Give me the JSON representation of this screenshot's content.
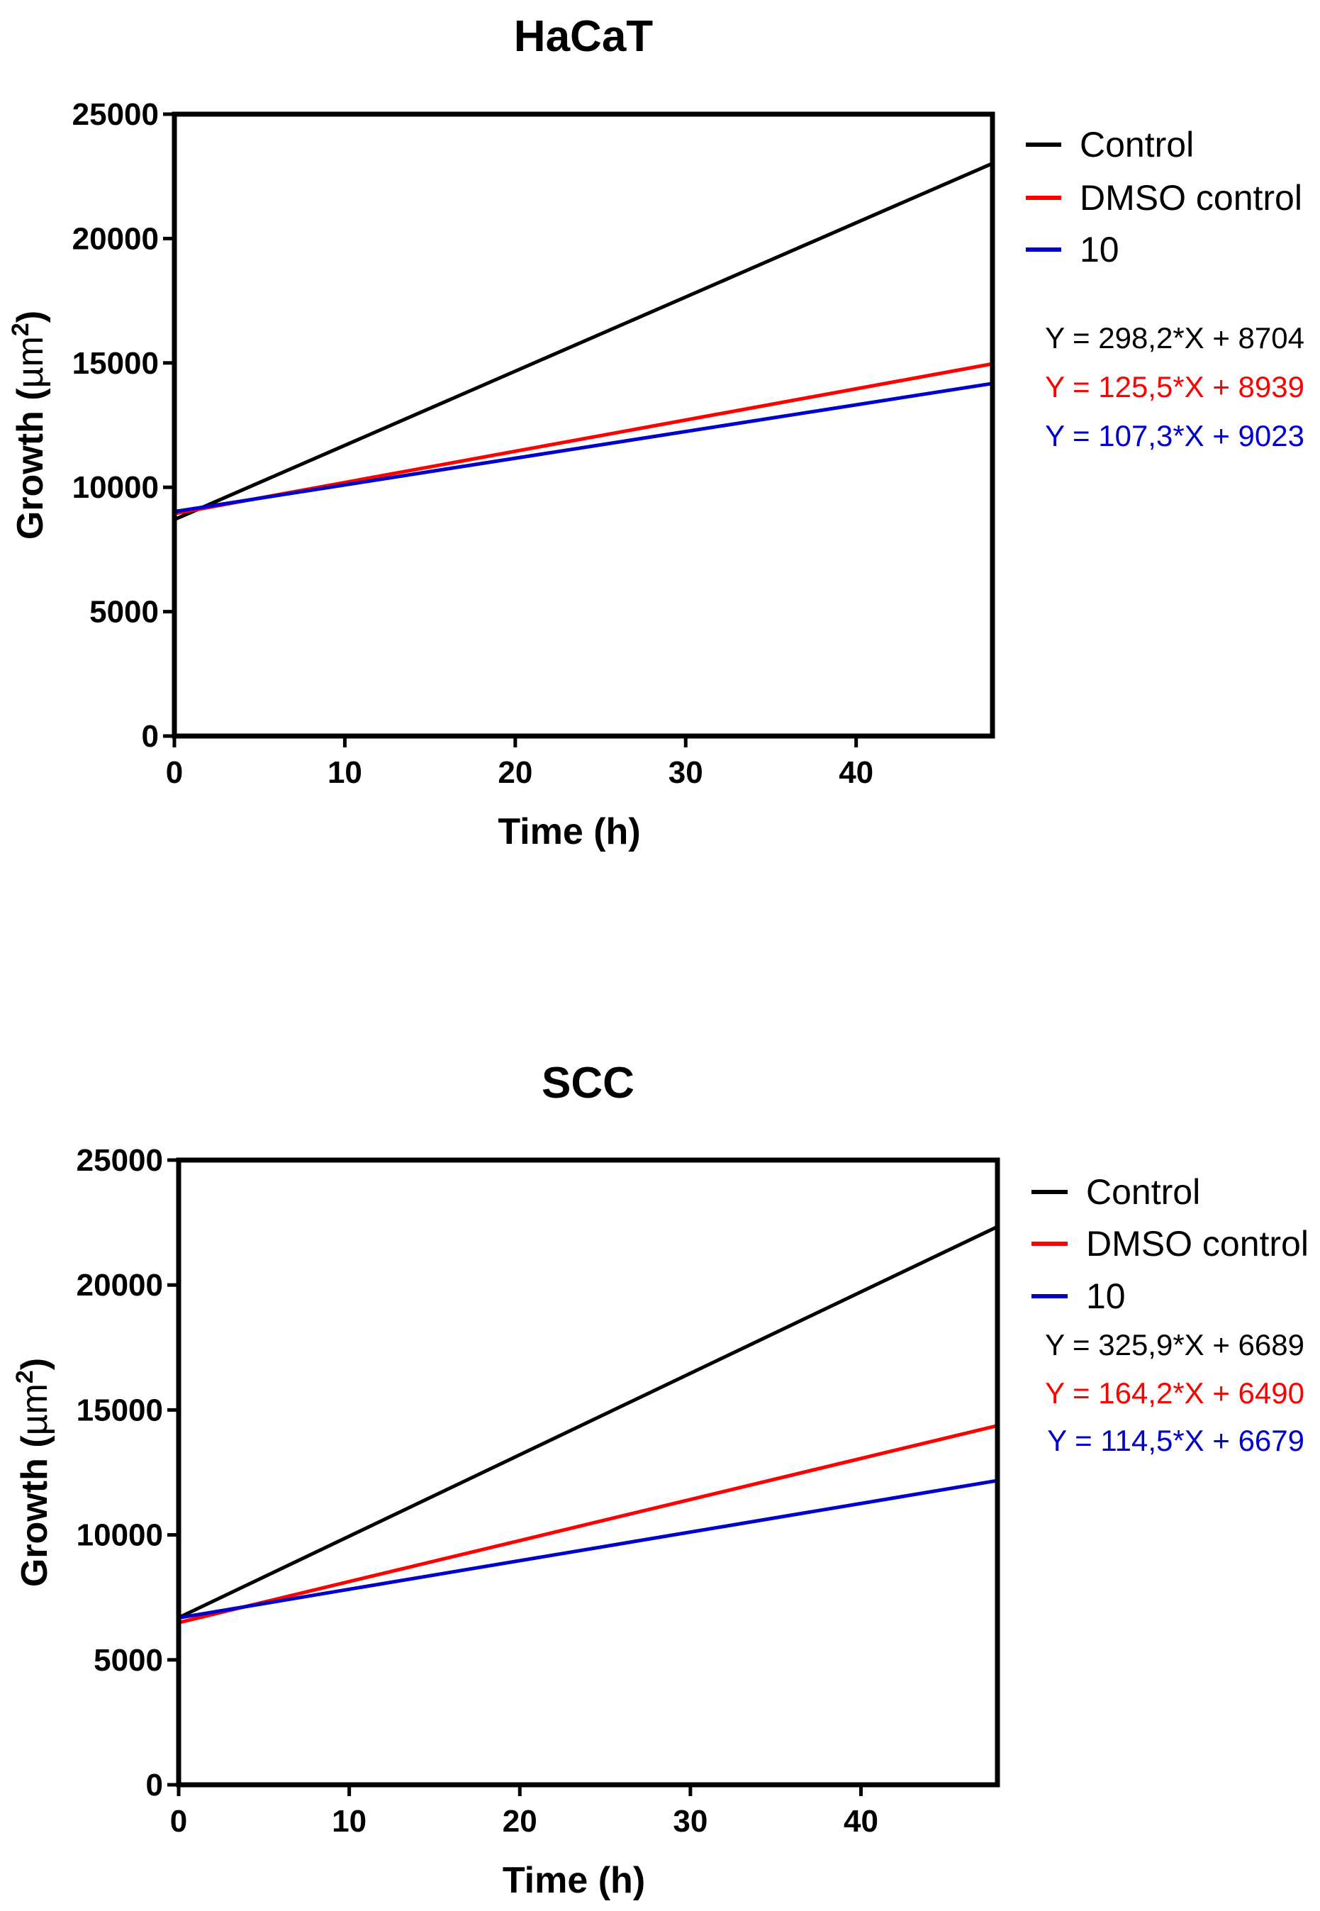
{
  "chart_data": [
    {
      "type": "line",
      "title": "HaCaT",
      "xlabel": "Time (h)",
      "ylabel_main": "Growth (",
      "ylabel_unit": "µm",
      "ylabel_exp": "2",
      "ylabel_close": ")",
      "xlim": [
        0,
        48
      ],
      "ylim": [
        0,
        25000
      ],
      "xticks": [
        0,
        10,
        20,
        30,
        40
      ],
      "yticks": [
        0,
        5000,
        10000,
        15000,
        20000,
        25000
      ],
      "grid": false,
      "legend_position": "right",
      "series": [
        {
          "name": "Control",
          "color": "#000000",
          "slope": 298.2,
          "intercept": 8704,
          "x": [
            0,
            48
          ],
          "y": [
            8704,
            23018
          ],
          "equation": "Y = 298,2*X + 8704"
        },
        {
          "name": "DMSO control",
          "color": "#ff0000",
          "slope": 125.5,
          "intercept": 8939,
          "x": [
            0,
            48
          ],
          "y": [
            8939,
            14963
          ],
          "equation": "Y = 125,5*X + 8939"
        },
        {
          "name": "10",
          "color": "#0000cc",
          "slope": 107.3,
          "intercept": 9023,
          "x": [
            0,
            48
          ],
          "y": [
            9023,
            14173
          ],
          "equation": "Y = 107,3*X + 9023"
        }
      ]
    },
    {
      "type": "line",
      "title": "SCC",
      "xlabel": "Time (h)",
      "ylabel_main": "Growth (",
      "ylabel_unit": "µm",
      "ylabel_exp": "2",
      "ylabel_close": ")",
      "xlim": [
        0,
        48
      ],
      "ylim": [
        0,
        25000
      ],
      "xticks": [
        0,
        10,
        20,
        30,
        40
      ],
      "yticks": [
        0,
        5000,
        10000,
        15000,
        20000,
        25000
      ],
      "grid": false,
      "legend_position": "right",
      "series": [
        {
          "name": "Control",
          "color": "#000000",
          "slope": 325.9,
          "intercept": 6689,
          "x": [
            0,
            48
          ],
          "y": [
            6689,
            22332
          ],
          "equation": "Y = 325,9*X + 6689"
        },
        {
          "name": "DMSO control",
          "color": "#ff0000",
          "slope": 164.2,
          "intercept": 6490,
          "x": [
            0,
            48
          ],
          "y": [
            6490,
            14372
          ],
          "equation": "Y = 164,2*X + 6490"
        },
        {
          "name": "10",
          "color": "#0000cc",
          "slope": 114.5,
          "intercept": 6679,
          "x": [
            0,
            48
          ],
          "y": [
            6679,
            12175
          ],
          "equation": "Y = 114,5*X + 6679"
        }
      ]
    }
  ]
}
